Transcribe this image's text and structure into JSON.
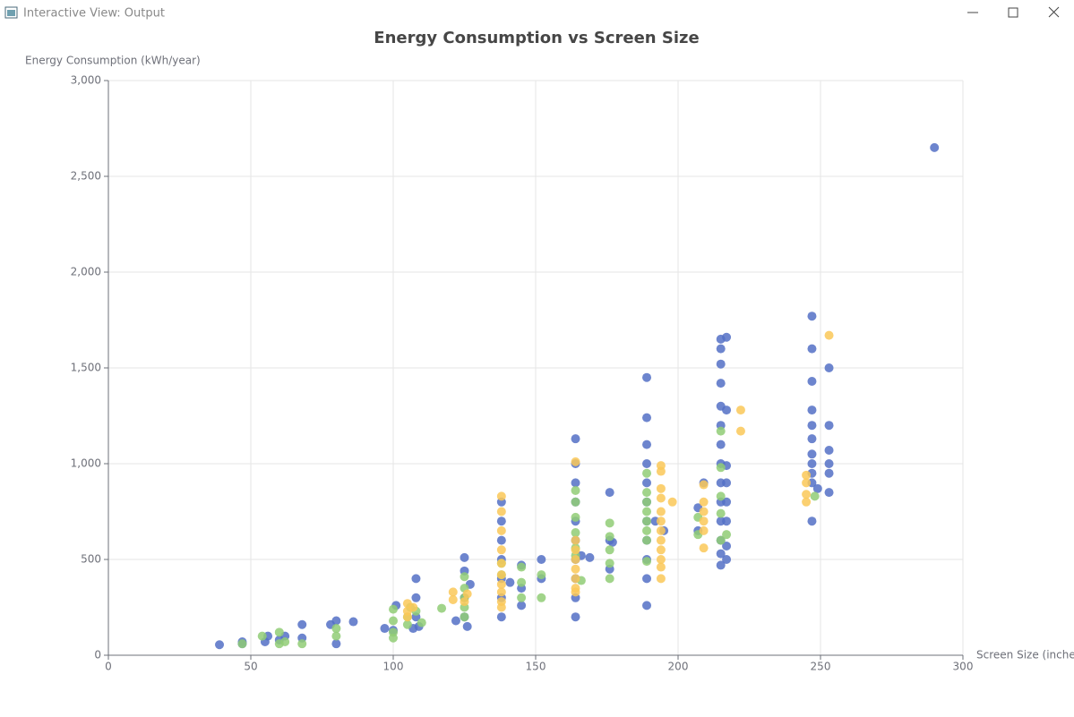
{
  "window_title": "Interactive View: Output",
  "chart_data": {
    "type": "scatter",
    "title": "Energy Consumption vs Screen Size",
    "x_label": "Screen Size (inches)",
    "y_label": "Energy Consumption (kWh/year)",
    "xlim": [
      0,
      300
    ],
    "xticks": [
      0,
      50,
      100,
      150,
      200,
      250,
      300
    ],
    "ylim": [
      0,
      3000
    ],
    "yticks": [
      0,
      500,
      {
        "value": 1000,
        "label": "1,000"
      },
      {
        "value": 1500,
        "label": "1,500"
      },
      {
        "value": 2000,
        "label": "2,000"
      },
      {
        "value": 2500,
        "label": "2,500"
      },
      {
        "value": 3000,
        "label": "3,000"
      }
    ],
    "grid": true,
    "series": [
      {
        "color": "#5470c6",
        "x": [
          39,
          47,
          47,
          55,
          56,
          60,
          62,
          68,
          68,
          78,
          80,
          80,
          86,
          97,
          100,
          101,
          107,
          108,
          108,
          108,
          109,
          122,
          125,
          125,
          125,
          125,
          126,
          127,
          138,
          138,
          138,
          138,
          138,
          138,
          138,
          141,
          145,
          145,
          145,
          152,
          152,
          164,
          164,
          164,
          164,
          164,
          164,
          164,
          164,
          164,
          164,
          166,
          169,
          176,
          176,
          176,
          177,
          189,
          189,
          189,
          189,
          189,
          189,
          189,
          189,
          189,
          189,
          189,
          192,
          195,
          207,
          207,
          209,
          215,
          215,
          215,
          215,
          215,
          215,
          215,
          215,
          215,
          215,
          215,
          215,
          215,
          215,
          217,
          217,
          217,
          217,
          217,
          217,
          217,
          217,
          247,
          247,
          247,
          247,
          247,
          247,
          247,
          247,
          247,
          247,
          247,
          249,
          253,
          253,
          253,
          253,
          253,
          253,
          290
        ],
        "values": [
          55,
          70,
          60,
          70,
          100,
          80,
          100,
          90,
          160,
          160,
          180,
          60,
          175,
          140,
          130,
          260,
          140,
          400,
          300,
          200,
          150,
          180,
          510,
          440,
          300,
          200,
          150,
          370,
          800,
          700,
          600,
          500,
          400,
          300,
          200,
          380,
          470,
          350,
          260,
          500,
          400,
          1130,
          1000,
          900,
          800,
          700,
          600,
          500,
          400,
          300,
          200,
          520,
          510,
          850,
          600,
          450,
          590,
          1450,
          1240,
          1100,
          1000,
          900,
          800,
          700,
          600,
          500,
          400,
          260,
          700,
          650,
          650,
          770,
          900,
          1650,
          1600,
          1520,
          1420,
          1300,
          1200,
          1100,
          1000,
          900,
          800,
          700,
          600,
          530,
          470,
          1660,
          1280,
          990,
          900,
          800,
          700,
          570,
          500,
          1770,
          1600,
          1430,
          1280,
          1200,
          1130,
          1050,
          1000,
          950,
          900,
          700,
          870,
          1500,
          1200,
          1070,
          1000,
          950,
          850,
          2650
        ]
      },
      {
        "color": "#91cc75",
        "x": [
          47,
          54,
          60,
          60,
          62,
          68,
          80,
          80,
          100,
          100,
          100,
          100,
          105,
          105,
          106,
          108,
          110,
          117,
          125,
          125,
          125,
          125,
          125,
          138,
          138,
          145,
          145,
          145,
          152,
          152,
          164,
          164,
          164,
          164,
          164,
          164,
          166,
          176,
          176,
          176,
          176,
          176,
          189,
          189,
          189,
          189,
          189,
          189,
          189,
          189,
          207,
          207,
          215,
          215,
          215,
          215,
          215,
          217,
          248
        ],
        "values": [
          60,
          100,
          120,
          60,
          70,
          60,
          100,
          140,
          240,
          180,
          120,
          90,
          160,
          200,
          250,
          230,
          170,
          245,
          410,
          350,
          300,
          250,
          200,
          480,
          420,
          460,
          380,
          300,
          420,
          300,
          860,
          800,
          720,
          640,
          560,
          520,
          390,
          690,
          620,
          550,
          480,
          400,
          950,
          850,
          800,
          750,
          700,
          650,
          600,
          490,
          720,
          630,
          1170,
          980,
          830,
          740,
          600,
          630,
          830
        ]
      },
      {
        "color": "#fac858",
        "x": [
          105,
          105,
          105,
          107,
          121,
          121,
          125,
          126,
          138,
          138,
          138,
          138,
          138,
          138,
          138,
          138,
          138,
          138,
          164,
          164,
          164,
          164,
          164,
          164,
          164,
          164,
          194,
          194,
          194,
          194,
          194,
          194,
          194,
          194,
          194,
          194,
          194,
          194,
          198,
          209,
          209,
          209,
          209,
          209,
          209,
          222,
          222,
          245,
          245,
          245,
          245,
          253
        ],
        "values": [
          270,
          230,
          200,
          250,
          330,
          290,
          280,
          320,
          830,
          750,
          650,
          550,
          480,
          420,
          370,
          330,
          280,
          250,
          1010,
          600,
          550,
          500,
          450,
          400,
          350,
          330,
          990,
          960,
          870,
          820,
          750,
          700,
          650,
          600,
          550,
          500,
          460,
          400,
          800,
          890,
          800,
          750,
          700,
          650,
          560,
          1280,
          1170,
          940,
          900,
          840,
          800,
          1670
        ]
      }
    ]
  }
}
